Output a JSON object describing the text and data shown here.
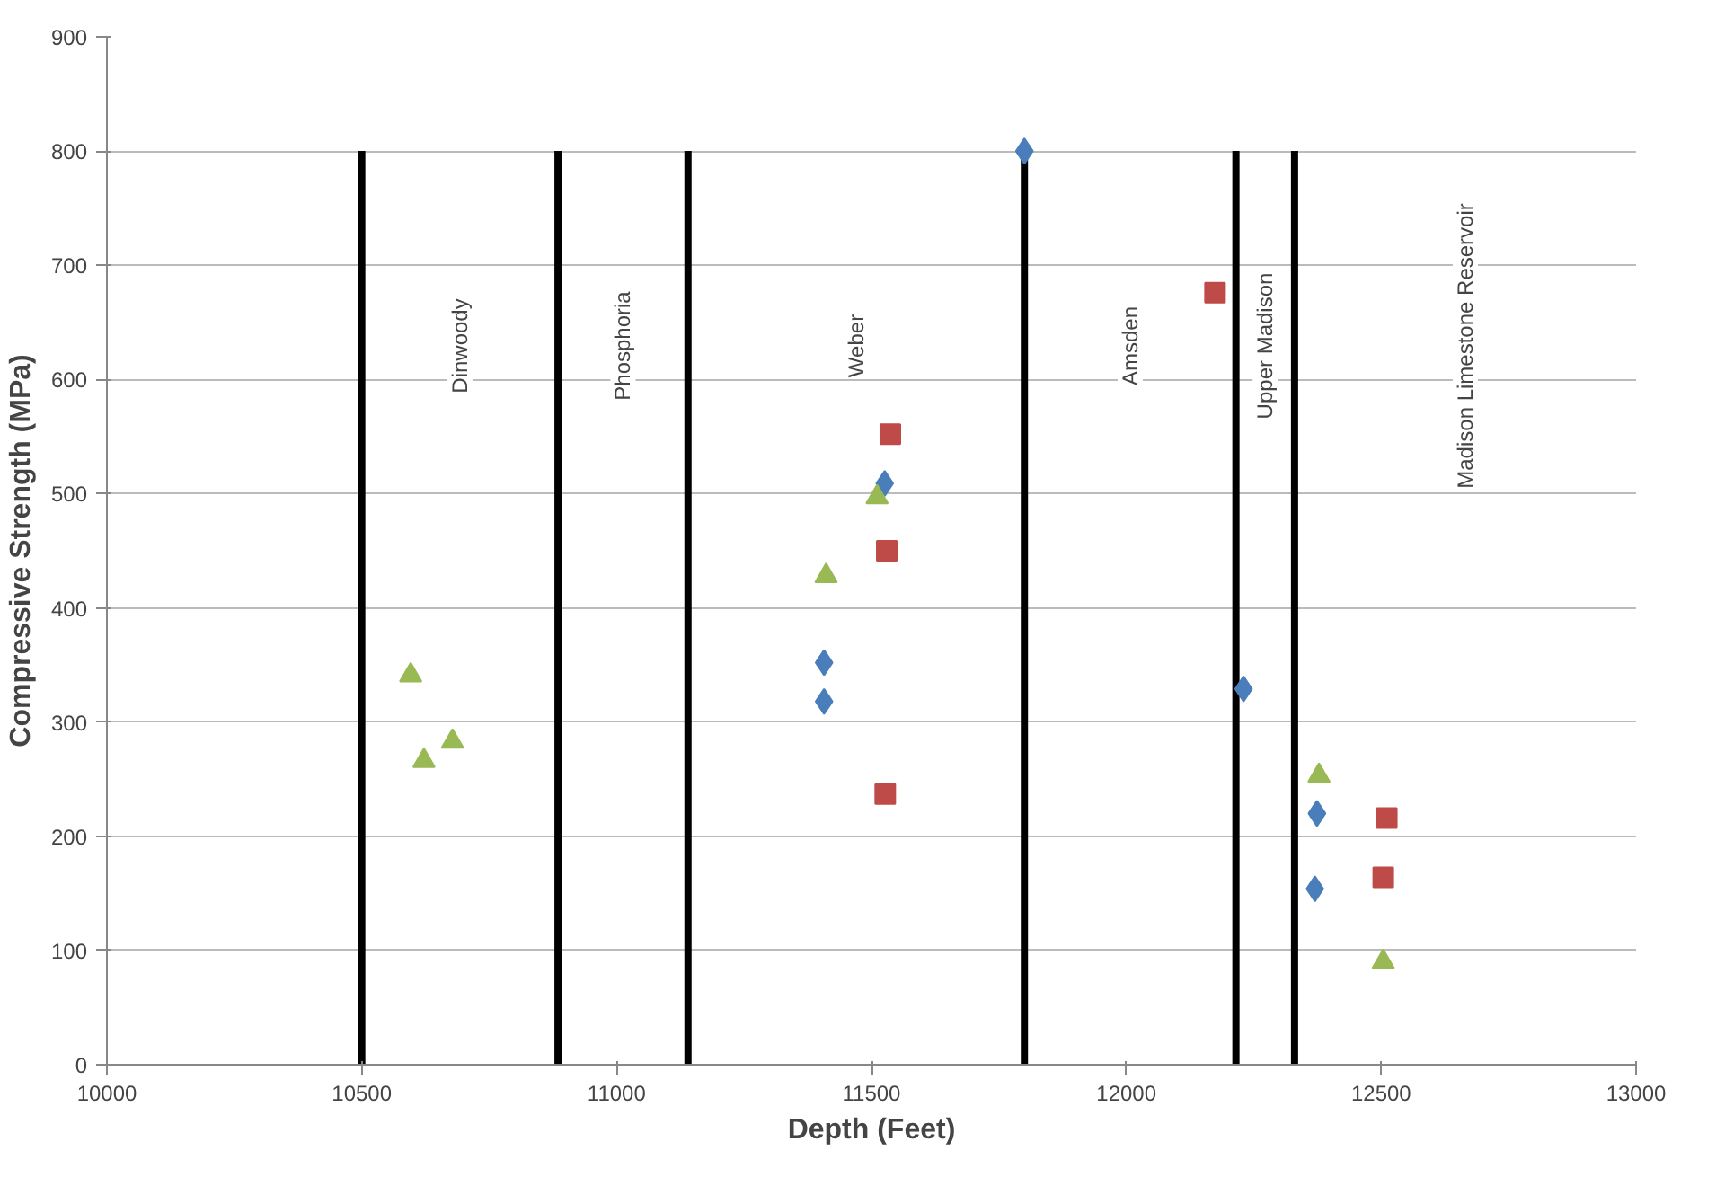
{
  "chart_data": {
    "type": "scatter",
    "xlabel": "Depth (Feet)",
    "ylabel": "Compressive Strength (MPa)",
    "xlim": [
      10000,
      13000
    ],
    "xticks": [
      10000,
      10500,
      11000,
      11500,
      12000,
      12500,
      13000
    ],
    "ylim": [
      0,
      900
    ],
    "yticks": [
      0,
      100,
      200,
      300,
      400,
      500,
      600,
      700,
      800,
      900
    ],
    "grid": "y",
    "series": [
      {
        "type": "line",
        "color": "#000000",
        "x": [
          10500,
          10500
        ],
        "values": [
          0,
          800
        ]
      },
      {
        "type": "line",
        "color": "#000000",
        "x": [
          10885,
          10885
        ],
        "values": [
          0,
          800
        ]
      },
      {
        "type": "line",
        "color": "#000000",
        "x": [
          11140,
          11140
        ],
        "values": [
          0,
          800
        ]
      },
      {
        "type": "line",
        "color": "#000000",
        "x": [
          11800,
          11800
        ],
        "values": [
          0,
          800
        ]
      },
      {
        "type": "line",
        "color": "#000000",
        "x": [
          12215,
          12215
        ],
        "values": [
          0,
          800
        ]
      },
      {
        "type": "line",
        "color": "#000000",
        "x": [
          12330,
          12330
        ],
        "values": [
          0,
          800
        ]
      },
      {
        "color": "#4a7ebb",
        "marker": "diamond",
        "x": [
          11800,
          11526,
          11407,
          11407,
          12230,
          12374,
          12370
        ],
        "values": [
          800,
          509,
          352,
          318,
          329,
          220,
          154
        ]
      },
      {
        "color": "#be4b48",
        "marker": "square",
        "x": [
          11537,
          11530,
          11527,
          12174,
          12511,
          12504
        ],
        "values": [
          552,
          450,
          237,
          676,
          216,
          164
        ]
      },
      {
        "color": "#98b954",
        "marker": "triangle",
        "x": [
          10596,
          10622,
          10678,
          11411,
          11511,
          12378,
          12504
        ],
        "values": [
          341,
          266,
          283,
          428,
          497,
          253,
          90
        ]
      }
    ],
    "annotations": [
      "Dinwoody",
      "Phosphoria",
      "Weber",
      "Amsden",
      "Upper Madison",
      "Madison Limestone Reservoir"
    ]
  }
}
